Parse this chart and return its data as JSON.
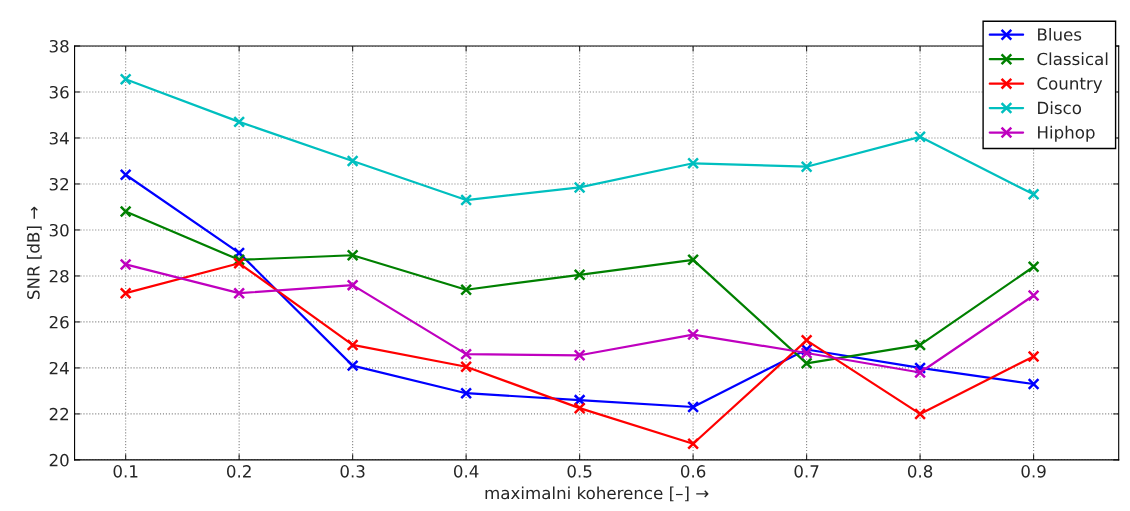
{
  "chart_data": {
    "type": "line",
    "xlabel": "maximalni koherence [–] →",
    "ylabel": "SNR [dB] →",
    "x": [
      0.1,
      0.2,
      0.3,
      0.4,
      0.5,
      0.6,
      0.7,
      0.8,
      0.9
    ],
    "series": [
      {
        "name": "Blues",
        "color": "#0000ff",
        "values": [
          32.4,
          29.0,
          24.1,
          22.9,
          22.6,
          22.3,
          24.8,
          24.0,
          23.3
        ]
      },
      {
        "name": "Classical",
        "color": "#008000",
        "values": [
          30.8,
          28.7,
          28.9,
          27.4,
          28.05,
          28.7,
          24.2,
          25.0,
          28.4
        ]
      },
      {
        "name": "Country",
        "color": "#ff0000",
        "values": [
          27.25,
          28.55,
          25.0,
          24.05,
          22.25,
          20.7,
          25.2,
          22.0,
          24.5
        ]
      },
      {
        "name": "Disco",
        "color": "#00bfbf",
        "values": [
          36.55,
          34.7,
          33.0,
          31.3,
          31.85,
          32.9,
          32.75,
          34.05,
          31.55
        ]
      },
      {
        "name": "Hiphop",
        "color": "#bf00bf",
        "values": [
          28.5,
          27.25,
          27.6,
          24.6,
          24.55,
          25.45,
          24.65,
          23.8,
          27.15
        ]
      }
    ],
    "xlim": [
      0.055,
      0.975
    ],
    "ylim": [
      20,
      38
    ],
    "xticks": [
      0.1,
      0.2,
      0.3,
      0.4,
      0.5,
      0.6,
      0.7,
      0.8,
      0.9
    ],
    "yticks": [
      20,
      22,
      24,
      26,
      28,
      30,
      32,
      34,
      36,
      38
    ],
    "grid": true,
    "legend": "top right",
    "marker": "cross",
    "line_style": "solid"
  }
}
